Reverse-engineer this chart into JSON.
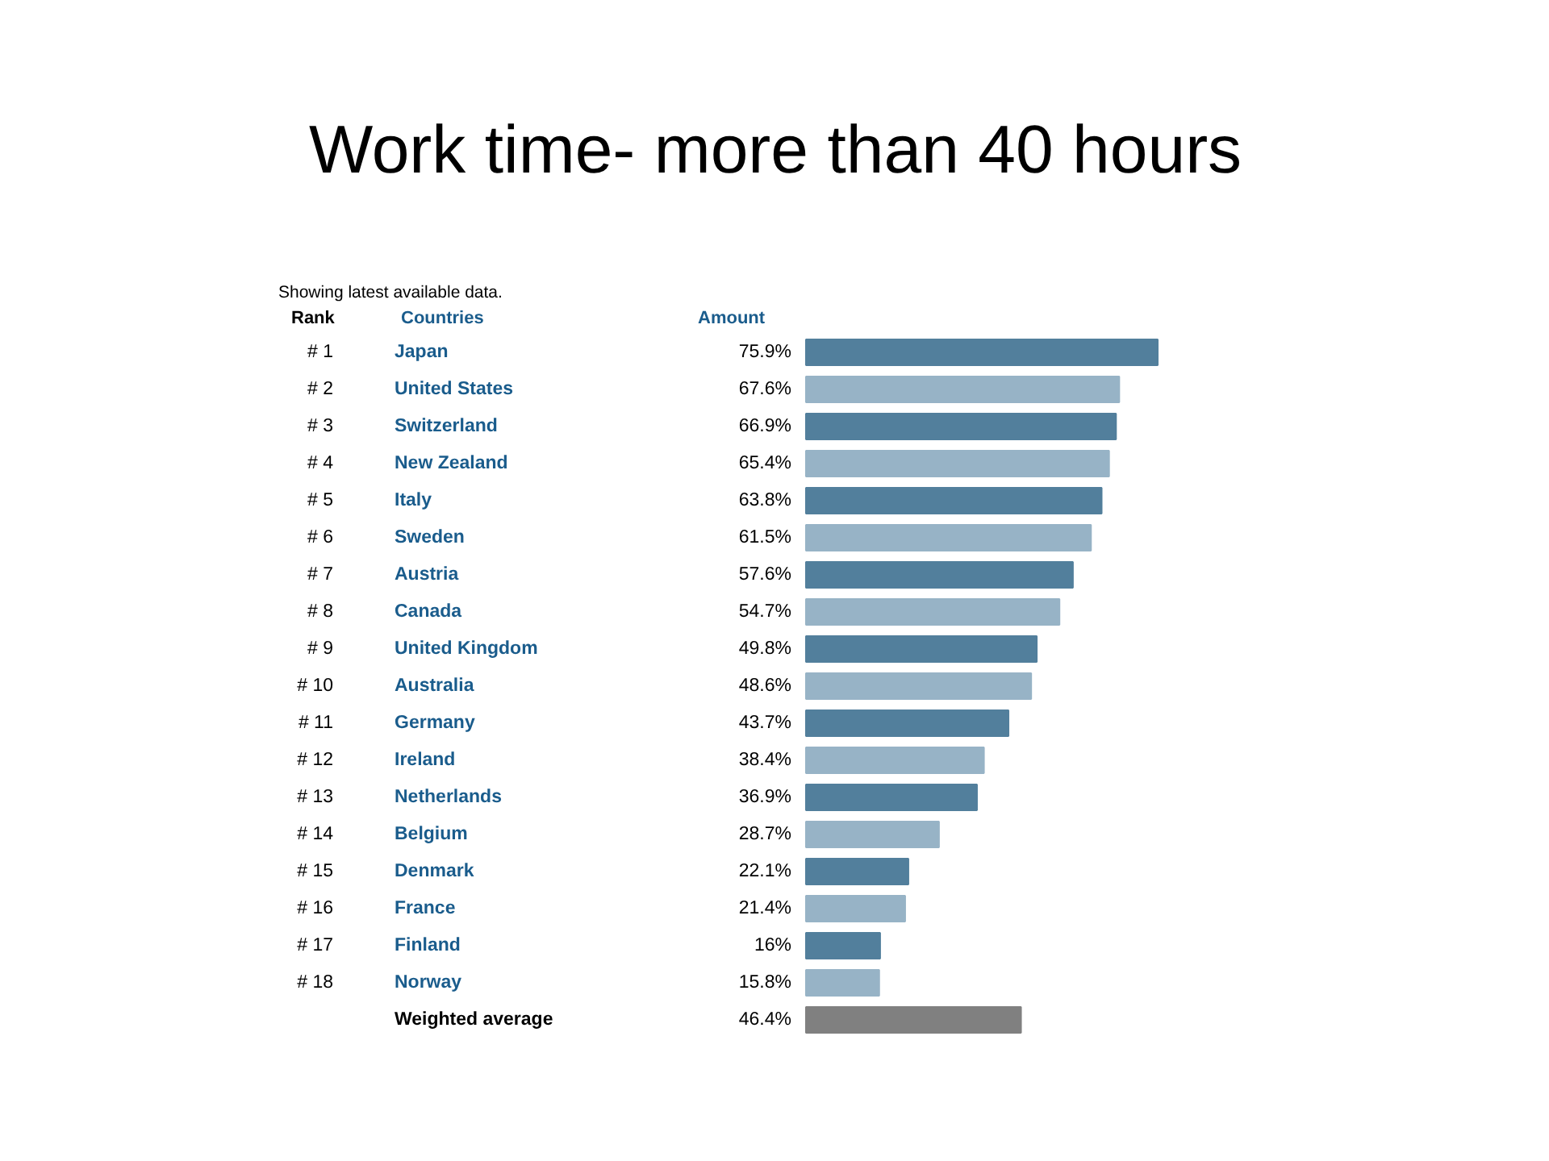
{
  "chart_data": {
    "type": "bar",
    "orientation": "horizontal",
    "title": "Work time- more than 40 hours",
    "tick_labels": false,
    "categories": [
      "Japan",
      "United States",
      "Switzerland",
      "New Zealand",
      "Italy",
      "Sweden",
      "Austria",
      "Canada",
      "United Kingdom",
      "Australia",
      "Germany",
      "Ireland",
      "Netherlands",
      "Belgium",
      "Denmark",
      "France",
      "Finland",
      "Norway",
      "Weighted average"
    ],
    "values": [
      75.9,
      67.6,
      66.9,
      65.4,
      63.8,
      61.5,
      57.6,
      54.7,
      49.8,
      48.6,
      43.7,
      38.4,
      36.9,
      28.7,
      22.1,
      21.4,
      16,
      15.8,
      46.4
    ],
    "value_labels": [
      "75.9%",
      "67.6%",
      "66.9%",
      "65.4%",
      "63.8%",
      "61.5%",
      "57.6%",
      "54.7%",
      "49.8%",
      "48.6%",
      "43.7%",
      "38.4%",
      "36.9%",
      "28.7%",
      "22.1%",
      "21.4%",
      "16%",
      "15.8%",
      "46.4%"
    ],
    "colors": [
      "#527f9c",
      "#97b3c6",
      "#527f9c",
      "#97b3c6",
      "#527f9c",
      "#97b3c6",
      "#527f9c",
      "#97b3c6",
      "#527f9c",
      "#97b3c6",
      "#527f9c",
      "#97b3c6",
      "#527f9c",
      "#97b3c6",
      "#527f9c",
      "#97b3c6",
      "#527f9c",
      "#97b3c6",
      "#808080"
    ],
    "annotations": [
      "Showing latest available data.",
      "Rank",
      "Countries",
      "Amount",
      "# 1",
      "# 2",
      "# 3",
      "# 4",
      "# 5",
      "# 6",
      "# 7",
      "# 8",
      "# 9",
      "# 10",
      "# 11",
      "# 12",
      "# 13",
      "# 14",
      "# 15",
      "# 16",
      "# 17",
      "# 18"
    ]
  }
}
